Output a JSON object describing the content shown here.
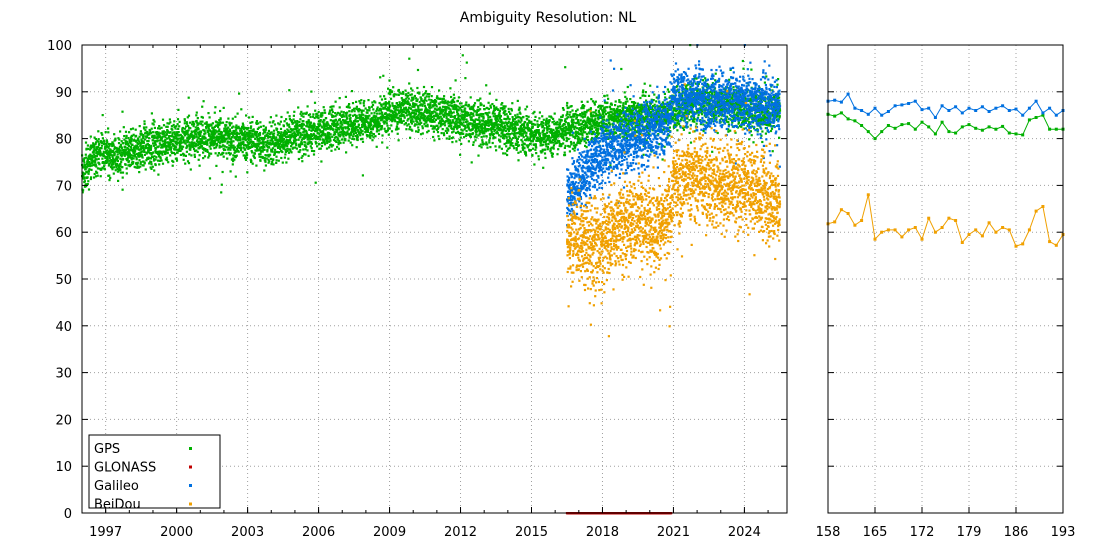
{
  "title": "Ambiguity Resolution: NL",
  "chart_data": [
    {
      "type": "scatter",
      "panel": "daily",
      "title": "Ambiguity Resolution: NL",
      "xlabel": "",
      "ylabel": "",
      "xlim": [
        1996.0,
        2025.8
      ],
      "ylim": [
        0,
        100
      ],
      "grid": true,
      "legend_position": "bottom-left",
      "x_ticks": [
        {
          "value": 1997,
          "label": "1997"
        },
        {
          "value": 2000,
          "label": "2000"
        },
        {
          "value": 2003,
          "label": "2003"
        },
        {
          "value": 2006,
          "label": "2006"
        },
        {
          "value": 2009,
          "label": "2009"
        },
        {
          "value": 2012,
          "label": "2012"
        },
        {
          "value": 2015,
          "label": "2015"
        },
        {
          "value": 2018,
          "label": "2018"
        },
        {
          "value": 2021,
          "label": "2021"
        },
        {
          "value": 2024,
          "label": "2024"
        }
      ],
      "y_ticks": [
        {
          "value": 0,
          "label": "0"
        },
        {
          "value": 10,
          "label": "10"
        },
        {
          "value": 20,
          "label": "20"
        },
        {
          "value": 30,
          "label": "30"
        },
        {
          "value": 40,
          "label": "40"
        },
        {
          "value": 50,
          "label": "50"
        },
        {
          "value": 60,
          "label": "60"
        },
        {
          "value": 70,
          "label": "70"
        },
        {
          "value": 80,
          "label": "80"
        },
        {
          "value": 90,
          "label": "90"
        },
        {
          "value": 100,
          "label": "100"
        }
      ],
      "series": [
        {
          "name": "GPS",
          "color": "#00b000",
          "x": [
            1996.0,
            1996.3,
            1996.6,
            1997.0,
            1997.5,
            1998.0,
            1998.5,
            1999.0,
            1999.5,
            2000.0,
            2000.5,
            2001.0,
            2001.5,
            2002.0,
            2002.5,
            2003.0,
            2003.5,
            2004.0,
            2004.5,
            2005.0,
            2005.5,
            2006.0,
            2006.5,
            2007.0,
            2007.5,
            2008.0,
            2008.5,
            2009.0,
            2009.5,
            2010.0,
            2010.5,
            2011.0,
            2011.5,
            2012.0,
            2012.5,
            2013.0,
            2013.5,
            2014.0,
            2014.5,
            2015.0,
            2015.5,
            2016.0,
            2016.5,
            2017.0,
            2017.5,
            2018.0,
            2018.5,
            2019.0,
            2019.5,
            2020.0,
            2020.5,
            2021.0,
            2021.5,
            2022.0,
            2022.5,
            2023.0,
            2023.5,
            2024.0,
            2024.5,
            2025.0,
            2025.5
          ],
          "values": [
            72,
            75,
            77,
            77,
            76,
            77,
            78,
            79,
            79,
            80,
            80,
            81,
            80,
            80,
            80,
            80,
            79,
            79,
            80,
            81,
            81,
            82,
            82,
            83,
            83,
            84,
            84,
            86,
            86,
            86,
            86,
            85,
            85,
            84,
            84,
            83,
            83,
            82,
            82,
            81,
            81,
            81,
            82,
            83,
            83,
            84,
            84,
            85,
            85,
            85,
            85,
            86,
            87,
            88,
            88,
            87,
            87,
            86,
            86,
            86,
            86
          ]
        },
        {
          "name": "GLONASS",
          "color": "#c00000",
          "x": [
            2016.5,
            2017.0,
            2017.5,
            2018.0,
            2018.5,
            2019.0,
            2019.5,
            2020.0,
            2020.5,
            2020.9
          ],
          "values": [
            0,
            0,
            0,
            0,
            0,
            0,
            0,
            0,
            0,
            0
          ]
        },
        {
          "name": "Galileo",
          "color": "#0070e0",
          "x": [
            2016.5,
            2016.8,
            2017.2,
            2017.6,
            2018.0,
            2018.4,
            2018.8,
            2019.2,
            2019.6,
            2020.0,
            2020.4,
            2020.8,
            2021.0,
            2021.5,
            2022.0,
            2022.5,
            2023.0,
            2023.5,
            2024.0,
            2024.5,
            2025.0,
            2025.5
          ],
          "values": [
            67,
            70,
            72,
            75,
            77,
            78,
            79,
            80,
            80,
            82,
            83,
            84,
            90,
            89,
            89,
            88,
            88,
            88,
            88,
            88,
            87,
            87
          ]
        },
        {
          "name": "BeiDou",
          "color": "#f0a000",
          "x": [
            2016.5,
            2016.8,
            2017.2,
            2017.6,
            2018.0,
            2018.4,
            2018.8,
            2019.2,
            2019.6,
            2020.0,
            2020.4,
            2020.8,
            2021.0,
            2021.5,
            2022.0,
            2022.5,
            2023.0,
            2023.5,
            2024.0,
            2024.5,
            2025.0,
            2025.5
          ],
          "values": [
            58,
            60,
            58,
            57,
            58,
            60,
            61,
            62,
            63,
            62,
            61,
            62,
            70,
            72,
            72,
            71,
            70,
            70,
            70,
            69,
            67,
            66
          ]
        }
      ]
    },
    {
      "type": "line",
      "panel": "weekly",
      "xlabel": "",
      "ylabel": "",
      "xlim": [
        158,
        193
      ],
      "ylim": [
        0,
        100
      ],
      "grid": true,
      "x_ticks": [
        {
          "value": 158,
          "label": "158"
        },
        {
          "value": 165,
          "label": "165"
        },
        {
          "value": 172,
          "label": "172"
        },
        {
          "value": 179,
          "label": "179"
        },
        {
          "value": 186,
          "label": "186"
        },
        {
          "value": 193,
          "label": "193"
        }
      ],
      "x": [
        158,
        159,
        160,
        161,
        162,
        163,
        164,
        165,
        166,
        167,
        168,
        169,
        170,
        171,
        172,
        173,
        174,
        175,
        176,
        177,
        178,
        179,
        180,
        181,
        182,
        183,
        184,
        185,
        186,
        187,
        188,
        189,
        190,
        191,
        192,
        193
      ],
      "series": [
        {
          "name": "GPS",
          "color": "#00b000",
          "values": [
            85.2,
            84.8,
            85.5,
            84.2,
            83.8,
            82.8,
            81.5,
            80.0,
            81.5,
            82.8,
            82.2,
            83.0,
            83.2,
            82.0,
            83.5,
            82.5,
            81.0,
            83.5,
            81.5,
            81.2,
            82.5,
            83.0,
            82.2,
            81.8,
            82.5,
            82.0,
            82.6,
            81.2,
            81.0,
            80.8,
            84.0,
            84.5,
            85.0,
            82.0,
            82.0,
            82.0
          ]
        },
        {
          "name": "Galileo",
          "color": "#0070e0",
          "values": [
            88.0,
            88.2,
            87.8,
            89.5,
            86.5,
            86.0,
            85.2,
            86.5,
            85.0,
            85.8,
            87.0,
            87.2,
            87.5,
            88.0,
            86.2,
            86.5,
            84.5,
            87.0,
            86.0,
            86.8,
            85.5,
            86.5,
            86.0,
            86.8,
            85.8,
            86.5,
            87.0,
            86.0,
            86.3,
            85.0,
            86.5,
            88.0,
            85.5,
            86.5,
            85.0,
            86.0
          ]
        },
        {
          "name": "BeiDou",
          "color": "#f0a000",
          "values": [
            61.8,
            62.2,
            64.8,
            64.0,
            61.5,
            62.5,
            68.0,
            58.5,
            60.0,
            60.5,
            60.5,
            59.0,
            60.5,
            61.0,
            58.5,
            63.0,
            60.0,
            61.0,
            63.0,
            62.5,
            57.8,
            59.5,
            60.5,
            59.2,
            62.0,
            60.0,
            61.0,
            60.5,
            57.0,
            57.5,
            60.5,
            64.5,
            65.5,
            58.0,
            57.2,
            59.5
          ]
        }
      ]
    }
  ]
}
